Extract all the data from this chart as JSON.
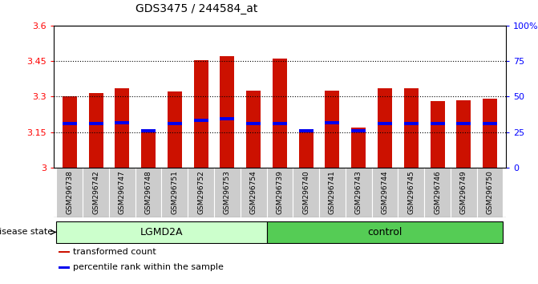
{
  "title": "GDS3475 / 244584_at",
  "samples": [
    "GSM296738",
    "GSM296742",
    "GSM296747",
    "GSM296748",
    "GSM296751",
    "GSM296752",
    "GSM296753",
    "GSM296754",
    "GSM296739",
    "GSM296740",
    "GSM296741",
    "GSM296743",
    "GSM296744",
    "GSM296745",
    "GSM296746",
    "GSM296749",
    "GSM296750"
  ],
  "bar_values": [
    3.3,
    3.315,
    3.335,
    3.155,
    3.32,
    3.455,
    3.47,
    3.325,
    3.46,
    3.155,
    3.325,
    3.17,
    3.335,
    3.335,
    3.28,
    3.285,
    3.29
  ],
  "blue_markers": [
    3.185,
    3.185,
    3.19,
    3.155,
    3.185,
    3.2,
    3.205,
    3.185,
    3.185,
    3.155,
    3.19,
    3.155,
    3.185,
    3.185,
    3.185,
    3.185,
    3.185
  ],
  "ymin": 3.0,
  "ymax": 3.6,
  "yticks": [
    3.0,
    3.15,
    3.3,
    3.45,
    3.6
  ],
  "ytick_labels": [
    "3",
    "3.15",
    "3.3",
    "3.45",
    "3.6"
  ],
  "right_yticks": [
    0,
    25,
    50,
    75,
    100
  ],
  "right_ytick_labels": [
    "0",
    "25",
    "50",
    "75",
    "100%"
  ],
  "bar_color": "#cc1100",
  "blue_color": "#0000ee",
  "groups": [
    {
      "label": "LGMD2A",
      "start": 0,
      "end": 8,
      "color": "#ccffcc"
    },
    {
      "label": "control",
      "start": 8,
      "end": 17,
      "color": "#55cc55"
    }
  ],
  "disease_state_label": "disease state",
  "legend_items": [
    {
      "label": "transformed count",
      "color": "#cc1100"
    },
    {
      "label": "percentile rank within the sample",
      "color": "#0000ee"
    }
  ],
  "bar_width": 0.55,
  "dotted_line_color": "#000000",
  "xtick_bg": "#cccccc",
  "spine_color": "#000000"
}
